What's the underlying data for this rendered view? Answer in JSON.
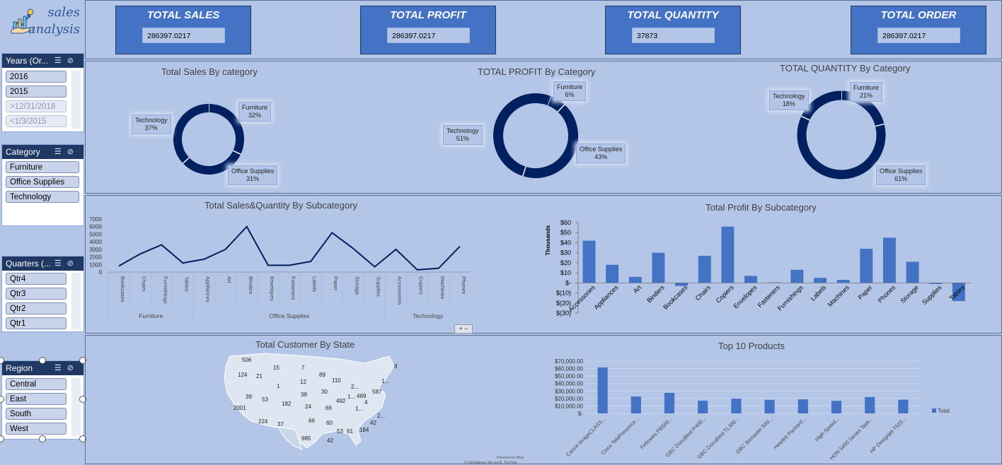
{
  "logo": {
    "line1": "sales",
    "line2": "analysis"
  },
  "slicers": {
    "years": {
      "title": "Years (Or...",
      "items": [
        "2016",
        "2015",
        ">12/31/2018",
        "<1/3/2015"
      ]
    },
    "category": {
      "title": "Category",
      "items": [
        "Furniture",
        "Office Supplies",
        "Technology"
      ]
    },
    "quarters": {
      "title": "Quarters (...",
      "items": [
        "Qtr4",
        "Qtr3",
        "Qtr2",
        "Qtr1"
      ]
    },
    "region": {
      "title": "Region",
      "items": [
        "Central",
        "East",
        "South",
        "West"
      ]
    }
  },
  "kpis": [
    {
      "title": "TOTAL SALES",
      "value": "286397.0217"
    },
    {
      "title": "TOTAL PROFIT",
      "value": "286397.0217"
    },
    {
      "title": "TOTAL QUANTITY",
      "value": "37873"
    },
    {
      "title": "TOTAL ORDER",
      "value": "286397.0217"
    }
  ],
  "colors": {
    "dark": "#002060",
    "bar": "#4472c4",
    "panel": "#b4c6e7"
  },
  "chart_data": [
    {
      "type": "pie",
      "title": "Total Sales By category",
      "categories": [
        "Furniture",
        "Office Supplies",
        "Technology"
      ],
      "values": [
        32,
        31,
        37
      ],
      "labels": [
        "32%",
        "31%",
        "37%"
      ]
    },
    {
      "type": "pie",
      "title": "TOTAL PROFIT By Category",
      "categories": [
        "Furniture",
        "Office Supplies",
        "Technology"
      ],
      "values": [
        6,
        43,
        51
      ],
      "labels": [
        "6%",
        "43%",
        "51%"
      ]
    },
    {
      "type": "pie",
      "title": "TOTAL QUANTITY By Category",
      "categories": [
        "Furniture",
        "Office Supplies",
        "Technology"
      ],
      "values": [
        21,
        61,
        18
      ],
      "labels": [
        "21%",
        "61%",
        "18%"
      ]
    },
    {
      "type": "line",
      "title": "Total Sales&Quantity By Subcategory",
      "groups": [
        {
          "name": "Furniture",
          "categories": [
            "Bookcases",
            "Chairs",
            "Furnishings",
            "Tables"
          ]
        },
        {
          "name": "Office Supplies",
          "categories": [
            "Appliances",
            "Art",
            "Binders",
            "Envelopes",
            "Fasteners",
            "Labels",
            "Paper",
            "Storage",
            "Supplies"
          ]
        },
        {
          "name": "Technology",
          "categories": [
            "Accessories",
            "Copiers",
            "Machines",
            "Phones"
          ]
        }
      ],
      "values": [
        800,
        2400,
        3600,
        1200,
        1700,
        3000,
        6000,
        900,
        900,
        1400,
        5200,
        3100,
        700,
        3000,
        300,
        500,
        3400
      ],
      "yticks": [
        "7000",
        "6000",
        "5000",
        "4000",
        "3000",
        "2000",
        "1000",
        "0"
      ],
      "ylim": [
        0,
        7000
      ]
    },
    {
      "type": "bar",
      "title": "Total Profit By Subcategory",
      "ylabel": "Thousands",
      "categories": [
        "Accessories",
        "Appliances",
        "Art",
        "Binders",
        "Bookcases",
        "Chairs",
        "Copiers",
        "Envelopes",
        "Fasteners",
        "Furnishings",
        "Labels",
        "Machines",
        "Paper",
        "Phones",
        "Storage",
        "Supplies",
        "Tables"
      ],
      "values": [
        42,
        18,
        6,
        30,
        -3,
        27,
        56,
        7,
        0.5,
        13,
        5,
        3,
        34,
        45,
        21,
        -1,
        -18
      ],
      "yticks": [
        "$60",
        "$50",
        "$40",
        "$30",
        "$20",
        "$10",
        "$-",
        "$(10)",
        "$(20)",
        "$(30)"
      ],
      "ylim": [
        -30,
        60
      ]
    },
    {
      "type": "bar",
      "title": "Top 10 Products",
      "categories": [
        "Canon imageCLASS...",
        "Cisco TelePresence...",
        "Fellowes PB500...",
        "GBC DocuBind P400...",
        "GBC DocuBind TL300...",
        "GBC Ibimaster 500...",
        "Hewlett Packard...",
        "High Speed...",
        "HON 5400 Series Task...",
        "HP Designjet T520..."
      ],
      "values": [
        61600,
        22600,
        27500,
        17000,
        19800,
        18200,
        18800,
        16800,
        21900,
        18400
      ],
      "yticks": [
        "$70,000.00",
        "$60,000.00",
        "$50,000.00",
        "$40,000.00",
        "$30,000.00",
        "$20,000.00",
        "$10,000.00",
        "$-"
      ],
      "ylim": [
        0,
        70000
      ],
      "legend": "Total"
    }
  ],
  "map": {
    "title": "Total Customer By State",
    "labels": [
      "506",
      "15",
      "7",
      "8",
      "124",
      "21",
      "89",
      "12",
      "110",
      "1",
      "2...",
      "1...",
      "38",
      "30",
      "587",
      "469",
      "39",
      "53",
      "182",
      "492",
      "1...",
      "4",
      "2001",
      "24",
      "66",
      "1...",
      "42",
      "224",
      "37",
      "66",
      "60",
      "2...",
      "184",
      "53",
      "61",
      "985",
      "42"
    ],
    "powered": "Powered by Bing",
    "copyright": "© GeoNames, Microsoft, TomTom"
  }
}
